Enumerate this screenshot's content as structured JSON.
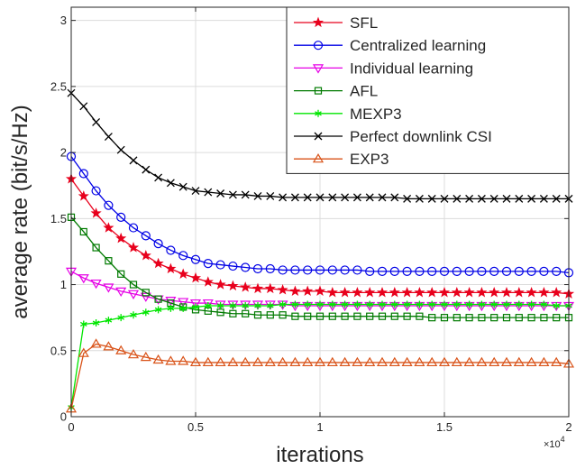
{
  "chart_data": {
    "type": "line",
    "xlabel": "iterations",
    "ylabel": "average rate (bit/s/Hz)",
    "x_multiplier_label": "×10",
    "x_multiplier_exp": "4",
    "xlim": [
      0,
      20000
    ],
    "ylim": [
      0,
      3.1
    ],
    "x_ticks": [
      0,
      5000,
      10000,
      15000,
      20000
    ],
    "x_tick_labels": [
      "0",
      "0.5",
      "1",
      "1.5",
      "2"
    ],
    "y_ticks": [
      0,
      0.5,
      1,
      1.5,
      2,
      2.5,
      3
    ],
    "y_tick_labels": [
      "0",
      "0.5",
      "1",
      "1.5",
      "2",
      "2.5",
      "3"
    ],
    "grid": true,
    "legend_position": "top-right",
    "x_step": 500,
    "series": [
      {
        "name": "SFL",
        "color": "#e8001c",
        "marker": "star",
        "values": [
          1.8,
          1.67,
          1.54,
          1.43,
          1.35,
          1.28,
          1.22,
          1.16,
          1.12,
          1.08,
          1.05,
          1.02,
          1.0,
          0.99,
          0.98,
          0.97,
          0.97,
          0.96,
          0.95,
          0.95,
          0.95,
          0.94,
          0.94,
          0.94,
          0.94,
          0.94,
          0.94,
          0.94,
          0.94,
          0.94,
          0.94,
          0.94,
          0.94,
          0.94,
          0.94,
          0.94,
          0.94,
          0.94,
          0.94,
          0.94,
          0.93
        ]
      },
      {
        "name": "Centralized learning",
        "color": "#0000e6",
        "marker": "circle",
        "values": [
          1.97,
          1.84,
          1.71,
          1.6,
          1.51,
          1.43,
          1.37,
          1.31,
          1.26,
          1.22,
          1.19,
          1.16,
          1.15,
          1.14,
          1.13,
          1.12,
          1.12,
          1.11,
          1.11,
          1.11,
          1.11,
          1.11,
          1.11,
          1.11,
          1.1,
          1.1,
          1.1,
          1.1,
          1.1,
          1.1,
          1.1,
          1.1,
          1.1,
          1.1,
          1.1,
          1.1,
          1.1,
          1.1,
          1.1,
          1.1,
          1.09
        ]
      },
      {
        "name": "Individual learning",
        "color": "#e600e6",
        "marker": "triangle-down",
        "values": [
          1.1,
          1.05,
          1.01,
          0.98,
          0.95,
          0.93,
          0.91,
          0.89,
          0.88,
          0.87,
          0.86,
          0.86,
          0.85,
          0.85,
          0.85,
          0.85,
          0.85,
          0.85,
          0.84,
          0.84,
          0.84,
          0.84,
          0.84,
          0.84,
          0.84,
          0.84,
          0.84,
          0.84,
          0.84,
          0.84,
          0.84,
          0.84,
          0.84,
          0.84,
          0.84,
          0.84,
          0.84,
          0.84,
          0.84,
          0.84,
          0.84
        ]
      },
      {
        "name": "AFL",
        "color": "#007a00",
        "marker": "square",
        "values": [
          1.51,
          1.4,
          1.28,
          1.18,
          1.08,
          1.0,
          0.94,
          0.89,
          0.86,
          0.83,
          0.81,
          0.8,
          0.79,
          0.78,
          0.78,
          0.77,
          0.77,
          0.77,
          0.76,
          0.76,
          0.76,
          0.76,
          0.76,
          0.76,
          0.76,
          0.76,
          0.76,
          0.76,
          0.76,
          0.75,
          0.75,
          0.75,
          0.75,
          0.75,
          0.75,
          0.75,
          0.75,
          0.75,
          0.75,
          0.75,
          0.75
        ]
      },
      {
        "name": "MEXP3",
        "color": "#00e600",
        "marker": "asterisk",
        "values": [
          0.07,
          0.7,
          0.71,
          0.73,
          0.75,
          0.77,
          0.79,
          0.81,
          0.82,
          0.82,
          0.83,
          0.84,
          0.84,
          0.84,
          0.84,
          0.84,
          0.84,
          0.85,
          0.85,
          0.85,
          0.85,
          0.85,
          0.85,
          0.85,
          0.85,
          0.85,
          0.85,
          0.85,
          0.85,
          0.85,
          0.85,
          0.85,
          0.85,
          0.85,
          0.85,
          0.85,
          0.85,
          0.85,
          0.85,
          0.84,
          0.84
        ]
      },
      {
        "name": "Perfect downlink CSI",
        "color": "#000000",
        "marker": "x",
        "values": [
          2.45,
          2.35,
          2.23,
          2.12,
          2.02,
          1.94,
          1.87,
          1.81,
          1.77,
          1.74,
          1.71,
          1.7,
          1.69,
          1.68,
          1.68,
          1.67,
          1.67,
          1.66,
          1.66,
          1.66,
          1.66,
          1.66,
          1.66,
          1.66,
          1.66,
          1.66,
          1.66,
          1.65,
          1.65,
          1.65,
          1.65,
          1.65,
          1.65,
          1.65,
          1.65,
          1.65,
          1.65,
          1.65,
          1.65,
          1.65,
          1.65
        ]
      },
      {
        "name": "EXP3",
        "color": "#d95319",
        "marker": "triangle-up",
        "values": [
          0.06,
          0.48,
          0.55,
          0.53,
          0.5,
          0.47,
          0.45,
          0.43,
          0.42,
          0.42,
          0.41,
          0.41,
          0.41,
          0.41,
          0.41,
          0.41,
          0.41,
          0.41,
          0.41,
          0.41,
          0.41,
          0.41,
          0.41,
          0.41,
          0.41,
          0.41,
          0.41,
          0.41,
          0.41,
          0.41,
          0.41,
          0.41,
          0.41,
          0.41,
          0.41,
          0.41,
          0.41,
          0.41,
          0.41,
          0.41,
          0.4
        ]
      }
    ]
  }
}
